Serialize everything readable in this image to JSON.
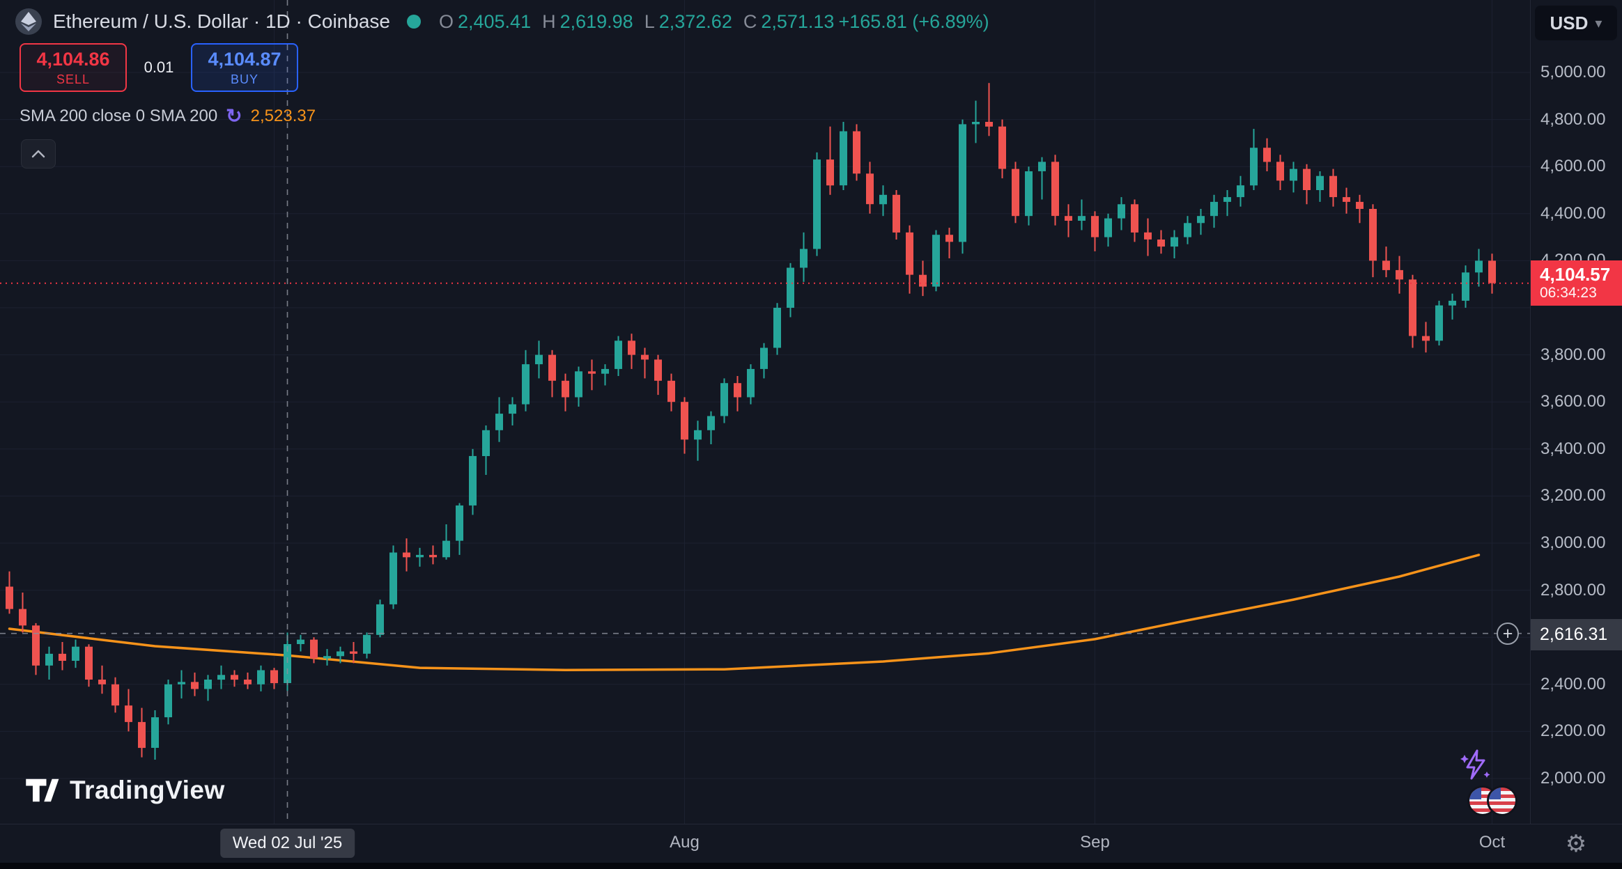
{
  "app": {
    "logo_text": "TradingView"
  },
  "colors": {
    "background": "#131722",
    "up": "#26a69a",
    "down": "#ef5350",
    "accent_sell": "#f23645",
    "accent_buy": "#2962ff",
    "sma_line": "#f7931a",
    "grid": "#1c2130",
    "crosshair": "#8b8f9b"
  },
  "header": {
    "symbol_title": "Ethereum / U.S. Dollar · 1D · Coinbase",
    "ohlc": {
      "o_label": "O",
      "o_value": "2,405.41",
      "h_label": "H",
      "h_value": "2,619.98",
      "l_label": "L",
      "l_value": "2,372.62",
      "c_label": "C",
      "c_value": "2,571.13",
      "change_text": "+165.81 (+6.89%)"
    },
    "trade_panel": {
      "sell_price": "4,104.86",
      "sell_label": "SELL",
      "spread": "0.01",
      "buy_price": "4,104.87",
      "buy_label": "BUY"
    },
    "indicator_row": {
      "label": "SMA 200 close 0 SMA 200",
      "value": "2,523.37"
    }
  },
  "icons": {
    "refresh": "↻",
    "usd_chevron": "▾",
    "gear": "⚙",
    "plus": "+"
  },
  "price_scale": {
    "currency_button": "USD",
    "ticks": [
      {
        "label": "5,000.00",
        "value": 5000
      },
      {
        "label": "4,800.00",
        "value": 4800
      },
      {
        "label": "4,600.00",
        "value": 4600
      },
      {
        "label": "4,400.00",
        "value": 4400
      },
      {
        "label": "4,200.00",
        "value": 4200
      },
      {
        "label": "3,800.00",
        "value": 3800
      },
      {
        "label": "3,600.00",
        "value": 3600
      },
      {
        "label": "3,400.00",
        "value": 3400
      },
      {
        "label": "3,200.00",
        "value": 3200
      },
      {
        "label": "3,000.00",
        "value": 3000
      },
      {
        "label": "2,800.00",
        "value": 2800
      },
      {
        "label": "2,400.00",
        "value": 2400
      },
      {
        "label": "2,200.00",
        "value": 2200
      },
      {
        "label": "2,000.00",
        "value": 2000
      }
    ],
    "last_price_label": {
      "price": "4,104.57",
      "countdown": "06:34:23",
      "value": 4104.57
    },
    "crosshair_label": {
      "price": "2,616.31",
      "value": 2616.31
    }
  },
  "time_axis": {
    "labels": [
      {
        "text": "Aug",
        "index": 51
      },
      {
        "text": "Sep",
        "index": 82
      },
      {
        "text": "Oct",
        "index": 112
      }
    ],
    "crosshair_label": {
      "text": "Wed 02 Jul '25",
      "index": 21
    }
  },
  "chart_data": {
    "type": "candlestick",
    "title": "Ethereum / U.S. Dollar",
    "interval": "1D",
    "exchange": "Coinbase",
    "quote_currency": "USD",
    "y_axis": {
      "grid_min": 2000,
      "grid_max": 5000,
      "tick_step": 200,
      "visible_range": [
        1810,
        5308
      ]
    },
    "x_axis": {
      "month_gridline_indices": [
        20,
        51,
        82,
        112
      ]
    },
    "current_price": 4104.57,
    "crosshair": {
      "date": "2025-07-02",
      "price": 2616.31,
      "index": 21
    },
    "ohlc_displayed": {
      "open": 2405.41,
      "high": 2619.98,
      "low": 2372.62,
      "close": 2571.13,
      "change": 165.81,
      "change_pct": 6.89
    },
    "sma200": {
      "period": 200,
      "value_displayed": 2523.37,
      "points": [
        [
          0,
          2636
        ],
        [
          11,
          2562
        ],
        [
          21,
          2523
        ],
        [
          31,
          2470
        ],
        [
          42,
          2461
        ],
        [
          54,
          2464
        ],
        [
          66,
          2497
        ],
        [
          74,
          2532
        ],
        [
          82,
          2592
        ],
        [
          89,
          2672
        ],
        [
          97,
          2760
        ],
        [
          105,
          2858
        ],
        [
          111,
          2950
        ]
      ]
    },
    "columns": [
      "date",
      "open",
      "high",
      "low",
      "close"
    ],
    "candles": [
      [
        "2025-06-11",
        2815,
        2880,
        2700,
        2720
      ],
      [
        "2025-06-12",
        2720,
        2790,
        2620,
        2650
      ],
      [
        "2025-06-13",
        2650,
        2660,
        2440,
        2480
      ],
      [
        "2025-06-14",
        2480,
        2560,
        2420,
        2530
      ],
      [
        "2025-06-15",
        2530,
        2580,
        2460,
        2500
      ],
      [
        "2025-06-16",
        2500,
        2590,
        2470,
        2560
      ],
      [
        "2025-06-17",
        2560,
        2570,
        2390,
        2420
      ],
      [
        "2025-06-18",
        2420,
        2480,
        2360,
        2400
      ],
      [
        "2025-06-19",
        2400,
        2430,
        2280,
        2310
      ],
      [
        "2025-06-20",
        2310,
        2380,
        2200,
        2240
      ],
      [
        "2025-06-21",
        2240,
        2300,
        2090,
        2130
      ],
      [
        "2025-06-22",
        2130,
        2290,
        2080,
        2260
      ],
      [
        "2025-06-23",
        2260,
        2420,
        2230,
        2400
      ],
      [
        "2025-06-24",
        2400,
        2460,
        2340,
        2410
      ],
      [
        "2025-06-25",
        2410,
        2450,
        2350,
        2380
      ],
      [
        "2025-06-26",
        2380,
        2440,
        2330,
        2420
      ],
      [
        "2025-06-27",
        2420,
        2480,
        2380,
        2440
      ],
      [
        "2025-06-28",
        2440,
        2460,
        2390,
        2420
      ],
      [
        "2025-06-29",
        2420,
        2450,
        2380,
        2400
      ],
      [
        "2025-06-30",
        2400,
        2480,
        2370,
        2460
      ],
      [
        "2025-07-01",
        2460,
        2470,
        2380,
        2405
      ],
      [
        "2025-07-02",
        2405.41,
        2619.98,
        2372.62,
        2571.13
      ],
      [
        "2025-07-03",
        2571,
        2610,
        2540,
        2590
      ],
      [
        "2025-07-04",
        2590,
        2600,
        2490,
        2510
      ],
      [
        "2025-07-05",
        2510,
        2550,
        2480,
        2520
      ],
      [
        "2025-07-06",
        2520,
        2560,
        2490,
        2540
      ],
      [
        "2025-07-07",
        2540,
        2580,
        2490,
        2530
      ],
      [
        "2025-07-08",
        2530,
        2620,
        2510,
        2610
      ],
      [
        "2025-07-09",
        2610,
        2760,
        2600,
        2740
      ],
      [
        "2025-07-10",
        2740,
        2990,
        2720,
        2960
      ],
      [
        "2025-07-11",
        2960,
        3020,
        2880,
        2940
      ],
      [
        "2025-07-12",
        2940,
        2980,
        2900,
        2950
      ],
      [
        "2025-07-13",
        2950,
        2990,
        2910,
        2940
      ],
      [
        "2025-07-14",
        2940,
        3080,
        2930,
        3010
      ],
      [
        "2025-07-15",
        3010,
        3170,
        2950,
        3160
      ],
      [
        "2025-07-16",
        3160,
        3400,
        3120,
        3370
      ],
      [
        "2025-07-17",
        3370,
        3500,
        3290,
        3480
      ],
      [
        "2025-07-18",
        3480,
        3620,
        3430,
        3550
      ],
      [
        "2025-07-19",
        3550,
        3620,
        3500,
        3590
      ],
      [
        "2025-07-20",
        3590,
        3820,
        3560,
        3760
      ],
      [
        "2025-07-21",
        3760,
        3860,
        3700,
        3800
      ],
      [
        "2025-07-22",
        3800,
        3820,
        3620,
        3690
      ],
      [
        "2025-07-23",
        3690,
        3720,
        3560,
        3620
      ],
      [
        "2025-07-24",
        3620,
        3750,
        3580,
        3730
      ],
      [
        "2025-07-25",
        3730,
        3780,
        3650,
        3720
      ],
      [
        "2025-07-26",
        3720,
        3760,
        3670,
        3740
      ],
      [
        "2025-07-27",
        3740,
        3880,
        3710,
        3860
      ],
      [
        "2025-07-28",
        3860,
        3890,
        3740,
        3800
      ],
      [
        "2025-07-29",
        3800,
        3830,
        3700,
        3780
      ],
      [
        "2025-07-30",
        3780,
        3800,
        3630,
        3690
      ],
      [
        "2025-07-31",
        3690,
        3720,
        3560,
        3600
      ],
      [
        "2025-08-01",
        3600,
        3620,
        3380,
        3440
      ],
      [
        "2025-08-02",
        3440,
        3520,
        3350,
        3480
      ],
      [
        "2025-08-03",
        3480,
        3560,
        3420,
        3540
      ],
      [
        "2025-08-04",
        3540,
        3700,
        3510,
        3680
      ],
      [
        "2025-08-05",
        3680,
        3710,
        3560,
        3620
      ],
      [
        "2025-08-06",
        3620,
        3760,
        3590,
        3740
      ],
      [
        "2025-08-07",
        3740,
        3850,
        3700,
        3830
      ],
      [
        "2025-08-08",
        3830,
        4020,
        3800,
        4000
      ],
      [
        "2025-08-09",
        4000,
        4190,
        3960,
        4170
      ],
      [
        "2025-08-10",
        4170,
        4320,
        4110,
        4250
      ],
      [
        "2025-08-11",
        4250,
        4660,
        4220,
        4630
      ],
      [
        "2025-08-12",
        4630,
        4770,
        4480,
        4520
      ],
      [
        "2025-08-13",
        4520,
        4790,
        4500,
        4750
      ],
      [
        "2025-08-14",
        4750,
        4780,
        4540,
        4570
      ],
      [
        "2025-08-15",
        4570,
        4620,
        4400,
        4440
      ],
      [
        "2025-08-16",
        4440,
        4520,
        4390,
        4480
      ],
      [
        "2025-08-17",
        4480,
        4500,
        4290,
        4320
      ],
      [
        "2025-08-18",
        4320,
        4350,
        4060,
        4140
      ],
      [
        "2025-08-19",
        4140,
        4200,
        4050,
        4090
      ],
      [
        "2025-08-20",
        4090,
        4330,
        4070,
        4310
      ],
      [
        "2025-08-21",
        4310,
        4340,
        4210,
        4280
      ],
      [
        "2025-08-22",
        4280,
        4800,
        4230,
        4780
      ],
      [
        "2025-08-23",
        4780,
        4880,
        4700,
        4790
      ],
      [
        "2025-08-24",
        4790,
        4955,
        4730,
        4770
      ],
      [
        "2025-08-25",
        4770,
        4800,
        4550,
        4590
      ],
      [
        "2025-08-26",
        4590,
        4620,
        4360,
        4390
      ],
      [
        "2025-08-27",
        4390,
        4600,
        4350,
        4580
      ],
      [
        "2025-08-28",
        4580,
        4640,
        4460,
        4620
      ],
      [
        "2025-08-29",
        4620,
        4650,
        4350,
        4390
      ],
      [
        "2025-08-30",
        4390,
        4440,
        4300,
        4370
      ],
      [
        "2025-08-31",
        4370,
        4460,
        4330,
        4390
      ],
      [
        "2025-09-01",
        4390,
        4410,
        4240,
        4300
      ],
      [
        "2025-09-02",
        4300,
        4400,
        4260,
        4380
      ],
      [
        "2025-09-03",
        4380,
        4470,
        4330,
        4440
      ],
      [
        "2025-09-04",
        4440,
        4460,
        4280,
        4320
      ],
      [
        "2025-09-05",
        4320,
        4380,
        4220,
        4290
      ],
      [
        "2025-09-06",
        4290,
        4330,
        4230,
        4260
      ],
      [
        "2025-09-07",
        4260,
        4330,
        4210,
        4300
      ],
      [
        "2025-09-08",
        4300,
        4390,
        4270,
        4360
      ],
      [
        "2025-09-09",
        4360,
        4420,
        4310,
        4390
      ],
      [
        "2025-09-10",
        4390,
        4480,
        4340,
        4450
      ],
      [
        "2025-09-11",
        4450,
        4500,
        4390,
        4470
      ],
      [
        "2025-09-12",
        4470,
        4560,
        4430,
        4520
      ],
      [
        "2025-09-13",
        4520,
        4760,
        4500,
        4680
      ],
      [
        "2025-09-14",
        4680,
        4720,
        4580,
        4620
      ],
      [
        "2025-09-15",
        4620,
        4650,
        4500,
        4540
      ],
      [
        "2025-09-16",
        4540,
        4620,
        4490,
        4590
      ],
      [
        "2025-09-17",
        4590,
        4610,
        4440,
        4500
      ],
      [
        "2025-09-18",
        4500,
        4580,
        4450,
        4560
      ],
      [
        "2025-09-19",
        4560,
        4590,
        4430,
        4470
      ],
      [
        "2025-09-20",
        4470,
        4510,
        4400,
        4450
      ],
      [
        "2025-09-21",
        4450,
        4480,
        4360,
        4420
      ],
      [
        "2025-09-22",
        4420,
        4440,
        4130,
        4200
      ],
      [
        "2025-09-23",
        4200,
        4260,
        4130,
        4160
      ],
      [
        "2025-09-24",
        4160,
        4220,
        4060,
        4120
      ],
      [
        "2025-09-25",
        4120,
        4140,
        3830,
        3880
      ],
      [
        "2025-09-26",
        3880,
        3940,
        3810,
        3860
      ],
      [
        "2025-09-27",
        3860,
        4030,
        3840,
        4010
      ],
      [
        "2025-09-28",
        4010,
        4060,
        3950,
        4030
      ],
      [
        "2025-09-29",
        4030,
        4180,
        4000,
        4150
      ],
      [
        "2025-09-30",
        4150,
        4250,
        4090,
        4200
      ],
      [
        "2025-10-01",
        4200,
        4230,
        4060,
        4104.57
      ]
    ]
  }
}
